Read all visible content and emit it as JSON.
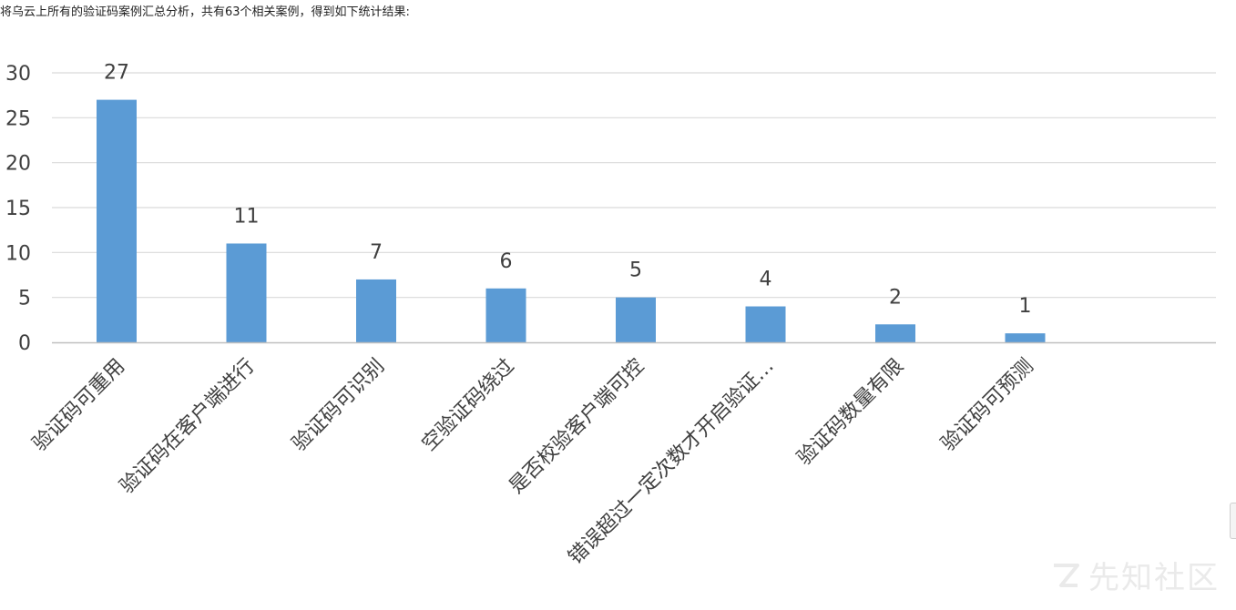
{
  "intro_text": "将乌云上所有的验证码案例汇总分析，共有63个相关案例，得到如下统计结果:",
  "watermark": {
    "text": "先知社区",
    "icon": "xianzhi-logo-icon"
  },
  "colors": {
    "bar": "#5b9bd5",
    "grid": "#d9d9d9",
    "axis": "#bfbfbf",
    "text": "#404040",
    "watermark": "#d9d9d9"
  },
  "chart_data": {
    "type": "bar",
    "title": "",
    "xlabel": "",
    "ylabel": "",
    "categories": [
      "验证码可重用",
      "验证码在客户端进行",
      "验证码可识别",
      "空验证码绕过",
      "是否校验客户端可控",
      "错误超过一定次数才开启验证…",
      "验证码数量有限",
      "验证码可预测"
    ],
    "values": [
      27,
      11,
      7,
      6,
      5,
      4,
      2,
      1
    ],
    "ylim": [
      0,
      30
    ],
    "yticks": [
      0,
      5,
      10,
      15,
      20,
      25,
      30
    ],
    "grid": true,
    "legend": "none",
    "data_labels": true
  }
}
